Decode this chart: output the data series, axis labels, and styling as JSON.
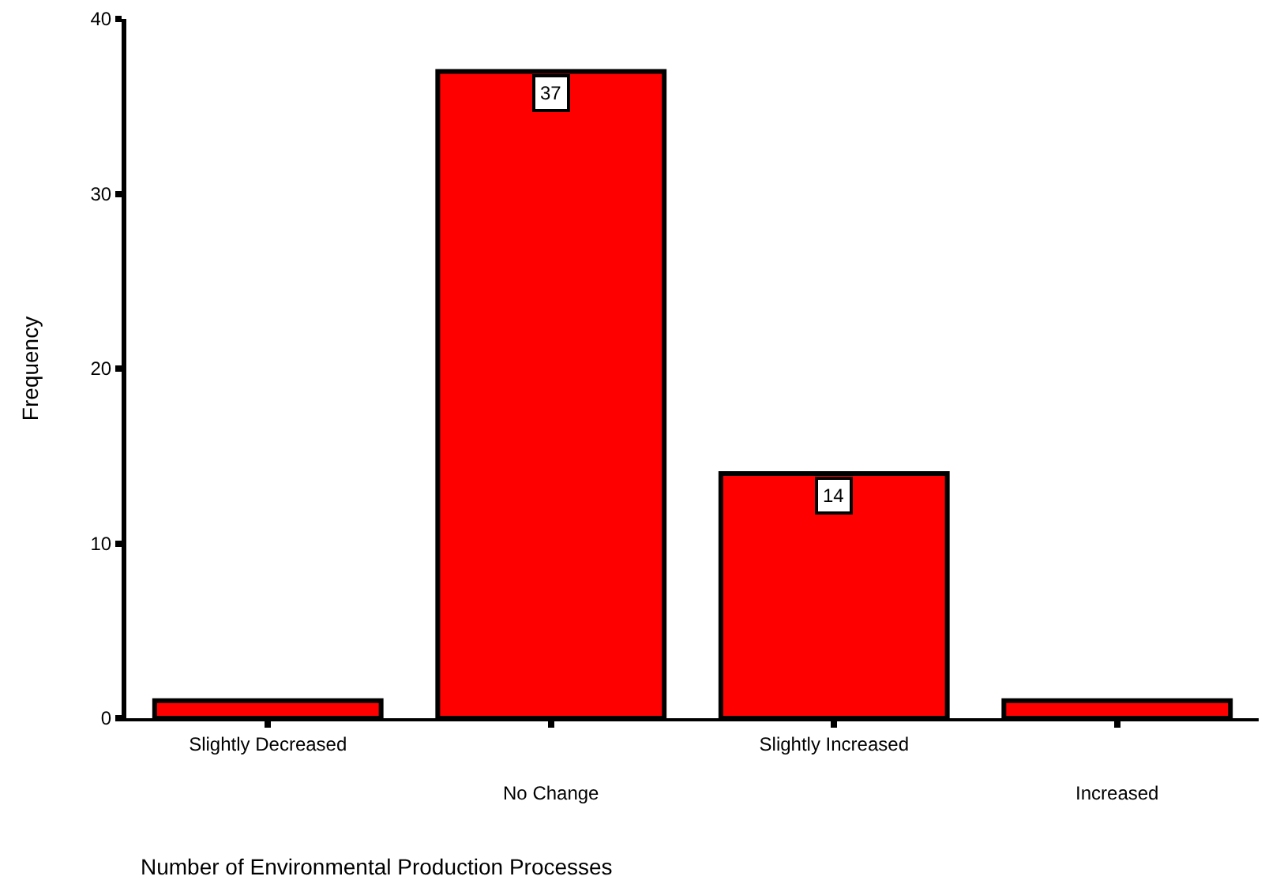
{
  "chart_data": {
    "type": "bar",
    "xlabel": "Number of Environmental Production Processes",
    "ylabel": "Frequency",
    "categories": [
      "Slightly Decreased",
      "No Change",
      "Slightly Increased",
      "Increased"
    ],
    "values": [
      1,
      37,
      14,
      1
    ],
    "value_labels": [
      null,
      "37",
      "14",
      null
    ],
    "color": "#ff0000",
    "ylim": [
      0,
      40
    ],
    "yticks": [
      0,
      10,
      20,
      30,
      40
    ]
  }
}
